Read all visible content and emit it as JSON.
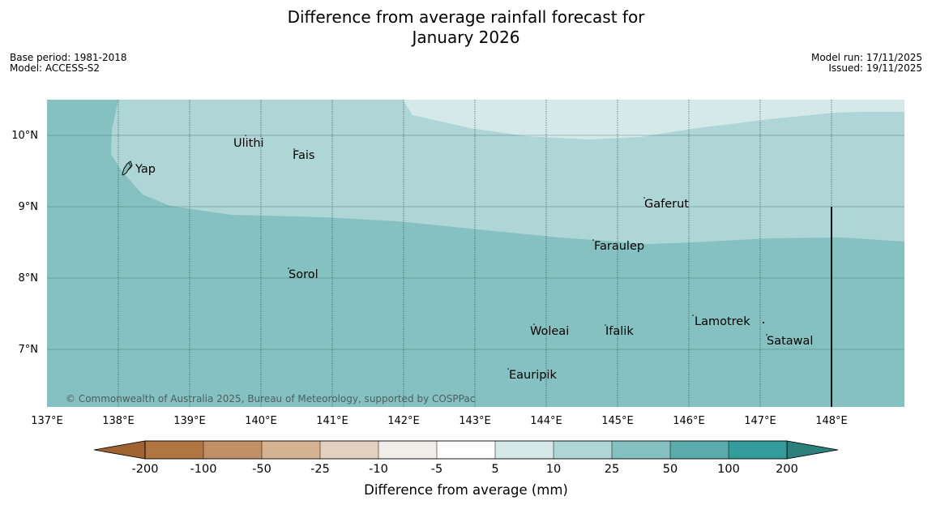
{
  "title": {
    "line1": "Difference from average rainfall forecast for",
    "line2": "January 2026"
  },
  "meta": {
    "base_period": "Base period: 1981-2018",
    "model": "Model: ACCESS-S2",
    "model_run": "Model run: 17/11/2025",
    "issued": "Issued: 19/11/2025"
  },
  "map": {
    "lat_labels": [
      "10°N",
      "9°N",
      "8°N",
      "7°N"
    ],
    "lon_labels": [
      "137°E",
      "138°E",
      "139°E",
      "140°E",
      "141°E",
      "142°E",
      "143°E",
      "144°E",
      "145°E",
      "146°E",
      "147°E",
      "148°E"
    ],
    "places": {
      "ulithi": "Ulithi",
      "fais": "Fais",
      "yap": "Yap",
      "gaferut": "Gaferut",
      "faraulep": "Faraulep",
      "sorol": "Sorol",
      "lamotrek": "Lamotrek",
      "woleai": "Woleai",
      "ifalik": "Ifalik",
      "satawal": "Satawal",
      "eauripik": "Eauripik"
    },
    "copyright": "© Commonwealth of Australia 2025, Bureau of Meteorology, supported by COSPPac"
  },
  "legend": {
    "tick_labels": [
      "-200",
      "-100",
      "-50",
      "-25",
      "-10",
      "-5",
      "5",
      "10",
      "25",
      "50",
      "100",
      "200"
    ],
    "colors": [
      "#b07540",
      "#c19066",
      "#d5b292",
      "#e4d0bf",
      "#f1ede8",
      "#ffffff",
      "#d6e9e9",
      "#aed6d6",
      "#85c1c0",
      "#5aabab",
      "#339b99"
    ],
    "low_extreme_color": "#9e6330",
    "high_extreme_color": "#2b7f7d",
    "label": "Difference from average (mm)"
  },
  "colors": {
    "band_25_50": "#85c1c0",
    "band_10_25": "#aed6d6",
    "band_5_10": "#d6e9e9",
    "gridline": "#3d6d6d"
  }
}
